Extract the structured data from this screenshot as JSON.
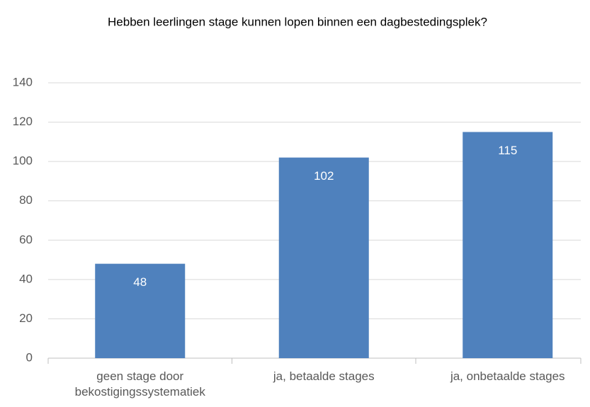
{
  "chart_data": {
    "type": "bar",
    "title": "Hebben leerlingen stage kunnen lopen binnen een dagbestedingsplek?",
    "categories": [
      "geen stage door bekostigingssystematiek",
      "ja, betaalde stages",
      "ja, onbetaalde stages"
    ],
    "values": [
      48,
      102,
      115
    ],
    "color": "#4f81bd",
    "ylim": [
      0,
      140
    ],
    "yticks": [
      0,
      20,
      40,
      60,
      80,
      100,
      120,
      140
    ],
    "grid": true
  }
}
